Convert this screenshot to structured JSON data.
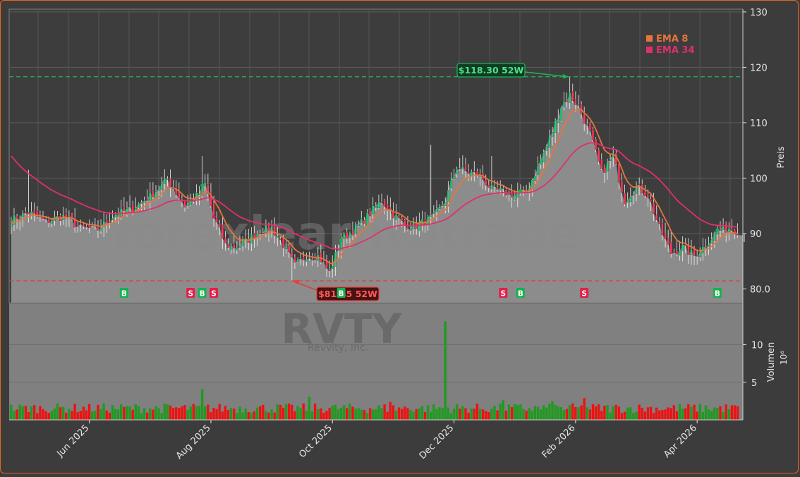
{
  "chart_data": {
    "type": "candlestick",
    "ticker": "RVTY",
    "company": "Revvity, Inc.",
    "watermark": "forexlearntotrade",
    "price_axis": {
      "label": "Preis",
      "ticks": [
        "80.0",
        "90",
        "100",
        "110",
        "120",
        "130"
      ],
      "values": [
        80,
        90,
        100,
        110,
        120,
        130
      ],
      "ylim": [
        77.5,
        130.5
      ]
    },
    "volume_axis": {
      "label": "Volumen",
      "unit": "10⁶",
      "ticks": [
        "5",
        "10"
      ],
      "values": [
        5,
        10
      ],
      "ylim": [
        0,
        15.5
      ]
    },
    "x_axis": {
      "ticks": [
        "Jun 2025",
        "Aug 2025",
        "Oct 2025",
        "Dec 2025",
        "Feb 2026",
        "Apr 2026"
      ],
      "tick_index": [
        27,
        69,
        111,
        153,
        195,
        237
      ],
      "n_bars": 252
    },
    "last_price": "90.4",
    "legend": {
      "placement": "top-right",
      "entries": [
        {
          "label": "EMA 8",
          "color": "#e8743b"
        },
        {
          "label": "EMA 34",
          "color": "#e0306a"
        }
      ]
    },
    "high_52w": {
      "label": "$118.30 52W",
      "value": 118.3,
      "index": 193,
      "color": "#22b35a"
    },
    "low_52w": {
      "label": "$81.45 52W",
      "value": 81.45,
      "index": 97,
      "color": "#e83a3a"
    },
    "close_anchors": [
      [
        0,
        92.5
      ],
      [
        6,
        93.8
      ],
      [
        12,
        92.2
      ],
      [
        18,
        93.2
      ],
      [
        24,
        91
      ],
      [
        30,
        90.8
      ],
      [
        36,
        93.5
      ],
      [
        42,
        94.5
      ],
      [
        48,
        96.8
      ],
      [
        54,
        99.8
      ],
      [
        60,
        95
      ],
      [
        65,
        97.2
      ],
      [
        67,
        99
      ],
      [
        70,
        93
      ],
      [
        74,
        88
      ],
      [
        78,
        87.5
      ],
      [
        82,
        89
      ],
      [
        86,
        90.5
      ],
      [
        90,
        91
      ],
      [
        94,
        88
      ],
      [
        98,
        84.2
      ],
      [
        102,
        86
      ],
      [
        106,
        86
      ],
      [
        110,
        83
      ],
      [
        114,
        89
      ],
      [
        118,
        90.5
      ],
      [
        122,
        92.5
      ],
      [
        128,
        96
      ],
      [
        132,
        93.5
      ],
      [
        136,
        91.5
      ],
      [
        140,
        91.5
      ],
      [
        146,
        93
      ],
      [
        150,
        96
      ],
      [
        154,
        102
      ],
      [
        158,
        101
      ],
      [
        162,
        100.5
      ],
      [
        166,
        98
      ],
      [
        170,
        97.5
      ],
      [
        174,
        97
      ],
      [
        178,
        97.5
      ],
      [
        182,
        102
      ],
      [
        186,
        107
      ],
      [
        190,
        113
      ],
      [
        193,
        115
      ],
      [
        196,
        113
      ],
      [
        200,
        108
      ],
      [
        204,
        101
      ],
      [
        208,
        104
      ],
      [
        212,
        96
      ],
      [
        216,
        98.5
      ],
      [
        220,
        97
      ],
      [
        224,
        91
      ],
      [
        228,
        86.5
      ],
      [
        232,
        87.5
      ],
      [
        236,
        86
      ],
      [
        240,
        88
      ],
      [
        244,
        90.5
      ],
      [
        248,
        91
      ],
      [
        251,
        90.5
      ]
    ],
    "buy_signals": [
      39,
      66,
      114,
      176,
      244
    ],
    "sell_signals": [
      62,
      70,
      170,
      198
    ],
    "buy_label": "B",
    "sell_label": "S"
  }
}
